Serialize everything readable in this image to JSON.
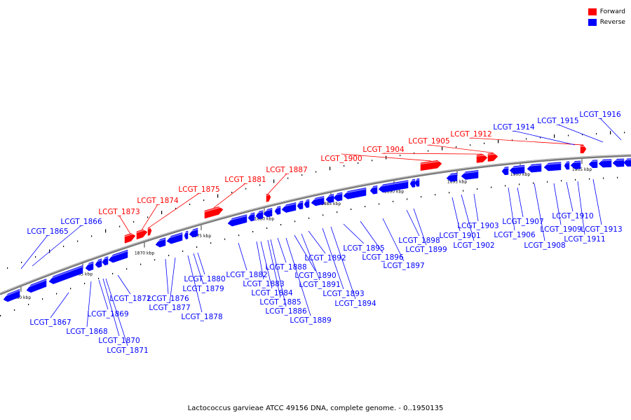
{
  "legend": [
    {
      "label": "Forward",
      "color": "#ff0000"
    },
    {
      "label": "Reverse",
      "color": "#0000ff"
    }
  ],
  "caption": "Lactococcus garvieae ATCC 49156 DNA, complete genome. - 0..1950135",
  "scale_ticks": [
    "1860 kbp",
    "1865 kbp",
    "1870 kbp",
    "1875 kbp",
    "1880 kbp",
    "1885 kbp",
    "1890 kbp",
    "1895 kbp",
    "1900 kbp",
    "1905 kbp"
  ],
  "forward_genes": [
    "LCGT_1873",
    "LCGT_1874",
    "LCGT_1875",
    "LCGT_1881",
    "LCGT_1887",
    "LCGT_1900",
    "LCGT_1904",
    "LCGT_1905",
    "LCGT_1912"
  ],
  "reverse_genes": [
    "LCGT_1865",
    "LCGT_1866",
    "LCGT_1867",
    "LCGT_1868",
    "LCGT_1869",
    "LCGT_1870",
    "LCGT_1871",
    "LCGT_1872",
    "LCGT_1876",
    "LCGT_1877",
    "LCGT_1878",
    "LCGT_1879",
    "LCGT_1880",
    "LCGT_1882",
    "LCGT_1883",
    "LCGT_1884",
    "LCGT_1885",
    "LCGT_1886",
    "LCGT_1888",
    "LCGT_1889",
    "LCGT_1890",
    "LCGT_1891",
    "LCGT_1892",
    "LCGT_1893",
    "LCGT_1894",
    "LCGT_1895",
    "LCGT_1896",
    "LCGT_1897",
    "LCGT_1898",
    "LCGT_1899",
    "LCGT_1901",
    "LCGT_1902",
    "LCGT_1903",
    "LCGT_1906",
    "LCGT_1907",
    "LCGT_1908",
    "LCGT_1909",
    "LCGT_1910",
    "LCGT_1911",
    "LCGT_1913",
    "LCGT_1914",
    "LCGT_1915",
    "LCGT_1916"
  ]
}
